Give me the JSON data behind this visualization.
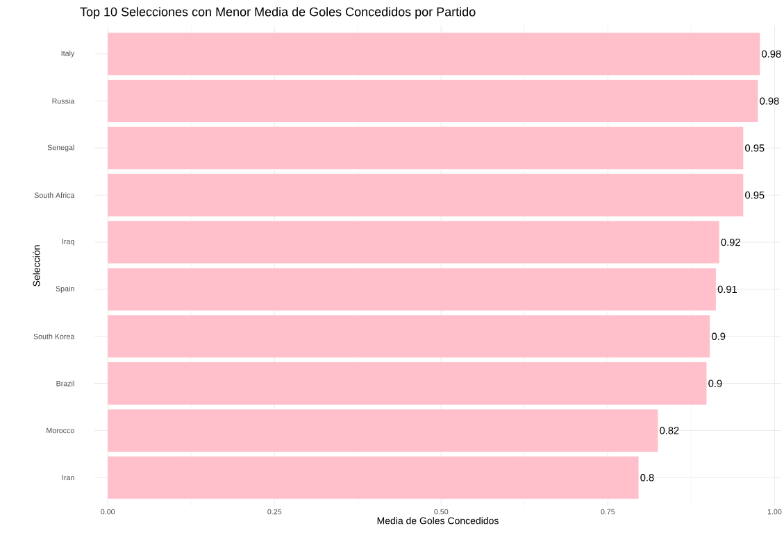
{
  "chart_data": {
    "type": "bar",
    "orientation": "horizontal",
    "title": "Top 10 Selecciones con Menor Media de Goles Concedidos por Partido",
    "xlabel": "Media de Goles Concedidos",
    "ylabel": "Selección",
    "categories": [
      "Italy",
      "Russia",
      "Senegal",
      "South Africa",
      "Iraq",
      "Spain",
      "South Korea",
      "Brazil",
      "Morocco",
      "Iran"
    ],
    "values": [
      0.978,
      0.975,
      0.953,
      0.953,
      0.917,
      0.912,
      0.903,
      0.898,
      0.825,
      0.796
    ],
    "value_labels": [
      "0.98",
      "0.98",
      "0.95",
      "0.95",
      "0.92",
      "0.91",
      "0.9",
      "0.9",
      "0.82",
      "0.8"
    ],
    "color": "#ffc0cb",
    "xlim": [
      -0.02,
      1.01
    ],
    "xticks": [
      {
        "value": 0,
        "label": "0.00"
      },
      {
        "value": 0.25,
        "label": "0.25"
      },
      {
        "value": 0.5,
        "label": "0.50"
      },
      {
        "value": 0.75,
        "label": "0.75"
      },
      {
        "value": 1,
        "label": "1.00"
      }
    ],
    "grid": true
  }
}
